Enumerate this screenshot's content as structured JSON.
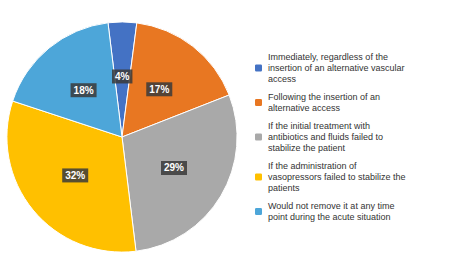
{
  "chart_data": {
    "type": "pie",
    "categories": [
      "Immediately, regardless of the\ninsertion of an alternative vascular\naccess",
      "Following the insertion of an\nalternative access",
      "If the initial treatment with\nantibiotics and fluids failed to\nstabilize the patient",
      "If the administration of\nvasopressors failed to stabilize the\npatients",
      "Would not remove it at any time\npoint during the acute situation"
    ],
    "values": [
      4,
      17,
      29,
      32,
      18
    ],
    "value_labels": [
      "4%",
      "17%",
      "29%",
      "32%",
      "18%"
    ],
    "colors": [
      "#4472C4",
      "#E87722",
      "#A9A9A9",
      "#FFC000",
      "#4DA6D9"
    ],
    "data_labels": true,
    "legend": "right"
  }
}
